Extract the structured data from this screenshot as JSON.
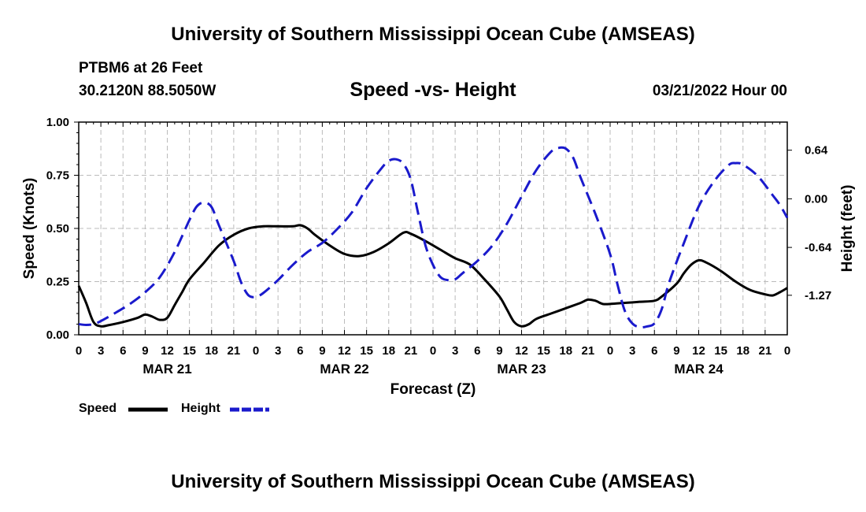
{
  "header": {
    "title": "University of Southern Mississippi Ocean Cube (AMSEAS)",
    "station": "PTBM6 at 26 Feet",
    "coords": "30.2120N  88.5050W",
    "datetime": "03/21/2022 Hour 00"
  },
  "footer": {
    "title": "University of Southern Mississippi Ocean Cube (AMSEAS)"
  },
  "legend": {
    "speed_label": "Speed",
    "height_label": "Height"
  },
  "chart_data": {
    "type": "line",
    "title": "Speed -vs- Height",
    "xlabel": "Forecast (Z)",
    "ylabel_left": "Speed (Knots)",
    "ylabel_right": "Height (feet)",
    "x_range_hours": [
      0,
      96
    ],
    "x_tick_labels": [
      "0",
      "3",
      "6",
      "9",
      "12",
      "15",
      "18",
      "21",
      "0",
      "3",
      "6",
      "9",
      "12",
      "15",
      "18",
      "21",
      "0",
      "3",
      "6",
      "9",
      "12",
      "15",
      "18",
      "21",
      "0",
      "3",
      "6",
      "9",
      "12",
      "15",
      "18",
      "21",
      "0"
    ],
    "day_labels": [
      {
        "label": "MAR 21",
        "hour": 12
      },
      {
        "label": "MAR 22",
        "hour": 36
      },
      {
        "label": "MAR 23",
        "hour": 60
      },
      {
        "label": "MAR 24",
        "hour": 84
      }
    ],
    "ylim_left": [
      0,
      1
    ],
    "yticks_left": [
      "0.00",
      "0.25",
      "0.50",
      "0.75",
      "1.00"
    ],
    "ylim_right": [
      -1.79,
      1.01
    ],
    "yticks_right": [
      {
        "label": "0.64",
        "value": 0.64
      },
      {
        "label": "0.00",
        "value": 0.0
      },
      {
        "label": "-0.64",
        "value": -0.64
      },
      {
        "label": "-1.27",
        "value": -1.27
      }
    ],
    "grid": true,
    "series": [
      {
        "name": "Speed",
        "axis": "left",
        "color": "#000000",
        "dashed": false,
        "points": [
          [
            0,
            0.23
          ],
          [
            1,
            0.15
          ],
          [
            2,
            0.06
          ],
          [
            3,
            0.04
          ],
          [
            4,
            0.045
          ],
          [
            6,
            0.06
          ],
          [
            8,
            0.08
          ],
          [
            9,
            0.095
          ],
          [
            10,
            0.085
          ],
          [
            11,
            0.07
          ],
          [
            12,
            0.08
          ],
          [
            13,
            0.14
          ],
          [
            14,
            0.2
          ],
          [
            15,
            0.26
          ],
          [
            17,
            0.34
          ],
          [
            19,
            0.42
          ],
          [
            21,
            0.47
          ],
          [
            23,
            0.5
          ],
          [
            25,
            0.51
          ],
          [
            27,
            0.51
          ],
          [
            29,
            0.51
          ],
          [
            30,
            0.515
          ],
          [
            31,
            0.5
          ],
          [
            32,
            0.47
          ],
          [
            34,
            0.42
          ],
          [
            36,
            0.38
          ],
          [
            38,
            0.37
          ],
          [
            40,
            0.39
          ],
          [
            42,
            0.43
          ],
          [
            44,
            0.48
          ],
          [
            45,
            0.475
          ],
          [
            47,
            0.44
          ],
          [
            49,
            0.4
          ],
          [
            51,
            0.36
          ],
          [
            53,
            0.33
          ],
          [
            55,
            0.26
          ],
          [
            57,
            0.18
          ],
          [
            58,
            0.12
          ],
          [
            59,
            0.06
          ],
          [
            60,
            0.04
          ],
          [
            61,
            0.05
          ],
          [
            62,
            0.075
          ],
          [
            64,
            0.1
          ],
          [
            66,
            0.125
          ],
          [
            68,
            0.15
          ],
          [
            69,
            0.165
          ],
          [
            70,
            0.16
          ],
          [
            71,
            0.145
          ],
          [
            72,
            0.145
          ],
          [
            74,
            0.15
          ],
          [
            76,
            0.155
          ],
          [
            78,
            0.16
          ],
          [
            79,
            0.18
          ],
          [
            81,
            0.24
          ],
          [
            82,
            0.29
          ],
          [
            83,
            0.33
          ],
          [
            84,
            0.35
          ],
          [
            85,
            0.34
          ],
          [
            87,
            0.3
          ],
          [
            89,
            0.25
          ],
          [
            91,
            0.21
          ],
          [
            93,
            0.19
          ],
          [
            94,
            0.185
          ],
          [
            95,
            0.2
          ],
          [
            96,
            0.22
          ]
        ]
      },
      {
        "name": "Height",
        "axis": "right",
        "color": "#1a1acc",
        "dashed": true,
        "points": [
          [
            0,
            -1.65
          ],
          [
            1,
            -1.66
          ],
          [
            2,
            -1.65
          ],
          [
            3,
            -1.61
          ],
          [
            5,
            -1.5
          ],
          [
            7,
            -1.38
          ],
          [
            9,
            -1.23
          ],
          [
            11,
            -1.03
          ],
          [
            13,
            -0.7
          ],
          [
            15,
            -0.28
          ],
          [
            16,
            -0.1
          ],
          [
            17,
            -0.05
          ],
          [
            18,
            -0.11
          ],
          [
            19,
            -0.35
          ],
          [
            21,
            -0.82
          ],
          [
            22,
            -1.1
          ],
          [
            23,
            -1.27
          ],
          [
            24,
            -1.29
          ],
          [
            25,
            -1.24
          ],
          [
            27,
            -1.07
          ],
          [
            29,
            -0.87
          ],
          [
            31,
            -0.7
          ],
          [
            33,
            -0.58
          ],
          [
            35,
            -0.4
          ],
          [
            37,
            -0.18
          ],
          [
            39,
            0.14
          ],
          [
            41,
            0.4
          ],
          [
            42,
            0.5
          ],
          [
            43,
            0.52
          ],
          [
            44,
            0.46
          ],
          [
            45,
            0.25
          ],
          [
            46,
            -0.2
          ],
          [
            47,
            -0.62
          ],
          [
            48,
            -0.87
          ],
          [
            49,
            -1.03
          ],
          [
            50,
            -1.07
          ],
          [
            51,
            -1.06
          ],
          [
            52,
            -0.98
          ],
          [
            54,
            -0.82
          ],
          [
            56,
            -0.62
          ],
          [
            58,
            -0.33
          ],
          [
            60,
            0.03
          ],
          [
            62,
            0.38
          ],
          [
            64,
            0.62
          ],
          [
            65,
            0.67
          ],
          [
            66,
            0.66
          ],
          [
            67,
            0.54
          ],
          [
            68,
            0.28
          ],
          [
            70,
            -0.2
          ],
          [
            72,
            -0.73
          ],
          [
            73,
            -1.13
          ],
          [
            74,
            -1.48
          ],
          [
            75,
            -1.64
          ],
          [
            76,
            -1.69
          ],
          [
            77,
            -1.68
          ],
          [
            78,
            -1.64
          ],
          [
            79,
            -1.45
          ],
          [
            80,
            -1.1
          ],
          [
            82,
            -0.58
          ],
          [
            84,
            -0.1
          ],
          [
            86,
            0.22
          ],
          [
            88,
            0.44
          ],
          [
            89,
            0.47
          ],
          [
            90,
            0.45
          ],
          [
            92,
            0.3
          ],
          [
            94,
            0.05
          ],
          [
            95,
            -0.08
          ],
          [
            96,
            -0.25
          ]
        ]
      }
    ]
  }
}
